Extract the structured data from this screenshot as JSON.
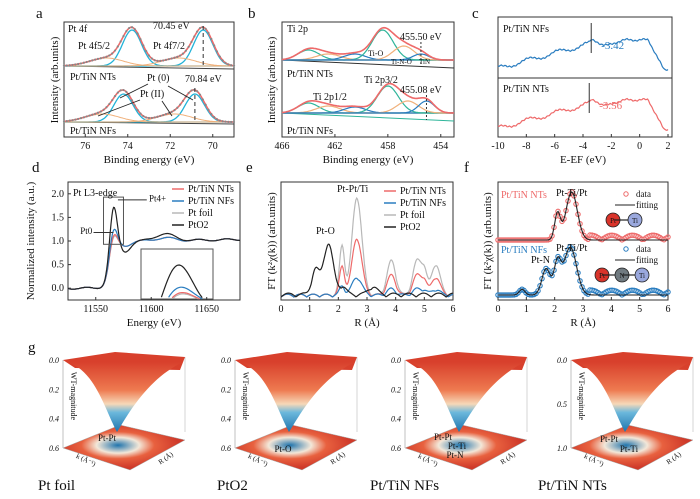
{
  "figure": {
    "panel_letters": [
      "a",
      "b",
      "c",
      "d",
      "e",
      "f",
      "g"
    ]
  },
  "chart_data": [
    {
      "id": "a",
      "type": "line",
      "title": "",
      "xlabel": "Binding energy (eV)",
      "ylabel": "Intensity (arb.units)",
      "xlim": [
        77,
        69
      ],
      "xticks": [
        "76",
        "74",
        "72",
        "70"
      ],
      "xtick_values": [
        76,
        74,
        72,
        70
      ],
      "annotations": {
        "orbital": "Pt 4f",
        "f52": "Pt 4f5/2",
        "f72": "Pt 4f7/2",
        "peak_top": "70.45 eV",
        "peak_bottom": "70.84 eV",
        "pt0": "Pt (0)",
        "pt2": "Pt (II)",
        "sample_top": "Pt/TiN NTs",
        "sample_bottom": "Pt/TiN NFs"
      },
      "peak_positions_eV": {
        "top_Pt0_4f72": 70.45,
        "top_Pt0_4f52": 73.8,
        "bottom_Pt0_4f72": 70.84,
        "bottom_Pt0_4f52": 74.2,
        "bottom_PtII_4f72": 71.8,
        "bottom_PtII_4f52": 75.1
      }
    },
    {
      "id": "b",
      "type": "line",
      "xlabel": "Binding energy (eV)",
      "ylabel": "Intensity (arb.units)",
      "xlim": [
        466,
        453
      ],
      "xticks": [
        "466",
        "462",
        "458",
        "454"
      ],
      "xtick_values": [
        466,
        462,
        458,
        454
      ],
      "annotations": {
        "orbital": "Ti 2p",
        "peak_top": "455.50 eV",
        "peak_bottom": "455.08 eV",
        "tio": "Ti-O",
        "tino": "Ti-N-O",
        "tin": "TiN",
        "p32": "Ti 2p3/2",
        "p12": "Ti 2p1/2",
        "sample_top": "Pt/TiN NTs",
        "sample_bottom": "Pt/TiN NFs"
      }
    },
    {
      "id": "c",
      "type": "line",
      "xlabel": "E-EF (eV)",
      "ylabel": "",
      "xlim": [
        -10,
        2
      ],
      "xticks": [
        "-10",
        "-8",
        "-6",
        "-4",
        "-2",
        "0",
        "2"
      ],
      "xtick_values": [
        -10,
        -8,
        -6,
        -4,
        -2,
        0,
        2
      ],
      "series": [
        {
          "name": "Pt/TiN NFs",
          "color": "#2a7dc0",
          "d_band_center": -3.42,
          "label": "-3.42"
        },
        {
          "name": "Pt/TiN NTs",
          "color": "#ee6a6a",
          "d_band_center": -3.56,
          "label": "-3.56"
        }
      ]
    },
    {
      "id": "d",
      "type": "line",
      "xlabel": "Energy (eV)",
      "ylabel": "Normalized intensity (a.u.)",
      "xlim": [
        11525,
        11680
      ],
      "ylim": [
        -0.25,
        2.25
      ],
      "xticks": [
        "11550",
        "11600",
        "11650"
      ],
      "xtick_values": [
        11550,
        11600,
        11650
      ],
      "yticks": [
        "0.0",
        "0.5",
        "1.0",
        "1.5",
        "2.0"
      ],
      "ytick_values": [
        0,
        0.5,
        1.0,
        1.5,
        2.0
      ],
      "annotations": {
        "edge": "Pt L3-edge",
        "pt4": "Pt4+",
        "pt0": "Pt0"
      },
      "series": [
        {
          "name": "Pt/TiN NTs",
          "color": "#ee6a6a",
          "whiteline": 1.25
        },
        {
          "name": "Pt/TiN NFs",
          "color": "#2a7dc0",
          "whiteline": 1.37
        },
        {
          "name": "Pt foil",
          "color": "#b8b8b8",
          "whiteline": 1.22
        },
        {
          "name": "PtO2",
          "color": "#222222",
          "whiteline": 1.87
        }
      ]
    },
    {
      "id": "e",
      "type": "line",
      "xlabel": "R (Å)",
      "ylabel": "FT (k²χ(k)) (arb.units)",
      "xlim": [
        0,
        6
      ],
      "xticks": [
        "0",
        "1",
        "2",
        "3",
        "4",
        "5",
        "6"
      ],
      "xtick_values": [
        0,
        1,
        2,
        3,
        4,
        5,
        6
      ],
      "annotations": {
        "pto": "Pt-O",
        "ptpt": "Pt-Pt/Ti"
      },
      "series": [
        {
          "name": "Pt/TiN NTs",
          "color": "#ee6a6a",
          "peak_R": 2.6,
          "peak_rel": 0.58
        },
        {
          "name": "Pt/TiN NFs",
          "color": "#2a7dc0",
          "peak_R": 2.6,
          "peak_rel": 0.18
        },
        {
          "name": "Pt foil",
          "color": "#b8b8b8",
          "peak_R": 2.65,
          "peak_rel": 1.0
        },
        {
          "name": "PtO2",
          "color": "#222222",
          "peak_R": 1.65,
          "peak_rel": 0.52
        }
      ]
    },
    {
      "id": "f",
      "type": "scatter",
      "xlabel": "R (Å)",
      "ylabel": "FT (k²χ(k)) (arb.units)",
      "xlim": [
        0,
        6
      ],
      "xticks": [
        "0",
        "1",
        "2",
        "3",
        "4",
        "5",
        "6"
      ],
      "xtick_values": [
        0,
        1,
        2,
        3,
        4,
        5,
        6
      ],
      "legend": {
        "data": "data",
        "fitting": "fitting"
      },
      "series": [
        {
          "name": "Pt/TiN NTs",
          "color": "#ee6a6a",
          "path_label": "Pt-Ti/Pt",
          "model": [
            "Pt",
            "Ti"
          ]
        },
        {
          "name": "Pt/TiN NFs",
          "color": "#2a7dc0",
          "path_label": "Pt-Ti/Pt",
          "extra_label": "Pt-N",
          "model": [
            "Pt",
            "N",
            "Ti"
          ]
        }
      ]
    },
    {
      "id": "g",
      "type": "heatmap",
      "zlabel": "WT-magnitude",
      "xlabel": "k (Å⁻¹)",
      "ylabel": "R (Å)",
      "plots": [
        {
          "name": "Pt foil",
          "zticks": [
            "0.0",
            "0.2",
            "0.4",
            "0.6"
          ],
          "labels": [
            "Pt-Pt"
          ]
        },
        {
          "name": "PtO2",
          "zticks": [
            "0.0",
            "0.2",
            "0.4",
            "0.6"
          ],
          "labels": [
            "Pt-O"
          ]
        },
        {
          "name": "Pt/TiN NFs",
          "zticks": [
            "0.0",
            "0.2",
            "0.4",
            "0.6"
          ],
          "labels": [
            "Pt-Pt",
            "Pt-Ti",
            "Pt-N"
          ]
        },
        {
          "name": "Pt/TiN NTs",
          "zticks": [
            "0.0",
            "0.5",
            "1.0"
          ],
          "labels": [
            "Pt-Pt",
            "Pt-Ti"
          ]
        }
      ]
    }
  ],
  "colors": {
    "red": "#ee6a6a",
    "blue": "#2a7dc0",
    "cyan": "#22b3d8",
    "orange": "#f0b07a",
    "green": "#2fb59a",
    "grey": "#b8b8b8",
    "black": "#222222"
  }
}
